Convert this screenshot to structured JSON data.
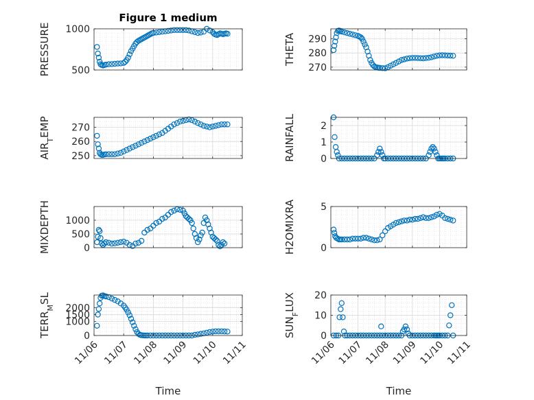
{
  "figure": {
    "title": "Figure 1 medium"
  },
  "style": {
    "marker_color": "#0072bd",
    "grid_color": "#d9d9d9",
    "axis_color": "#262626"
  },
  "chart_data": [
    {
      "type": "scatter",
      "ylabel": "PRESSURE",
      "xlim": [
        0,
        5
      ],
      "ylim": [
        500,
        1000
      ],
      "yticks": [
        500,
        1000
      ],
      "xtick_labels": [],
      "x": [
        0.1,
        0.13,
        0.16,
        0.19,
        0.22,
        0.26,
        0.3,
        0.35,
        0.4,
        0.5,
        0.6,
        0.7,
        0.8,
        0.9,
        1.0,
        1.05,
        1.1,
        1.15,
        1.2,
        1.25,
        1.3,
        1.35,
        1.4,
        1.45,
        1.5,
        1.55,
        1.6,
        1.65,
        1.7,
        1.75,
        1.8,
        1.85,
        1.9,
        1.95,
        2.0,
        2.1,
        2.2,
        2.3,
        2.4,
        2.5,
        2.6,
        2.7,
        2.8,
        2.9,
        3.0,
        3.1,
        3.2,
        3.3,
        3.4,
        3.5,
        3.6,
        3.7,
        3.8,
        3.9,
        4.0,
        4.05,
        4.1,
        4.15,
        4.2,
        4.25,
        4.3,
        4.35,
        4.4,
        4.45,
        4.5
      ],
      "y": [
        780,
        700,
        650,
        600,
        570,
        560,
        555,
        560,
        565,
        570,
        572,
        575,
        578,
        580,
        585,
        600,
        620,
        650,
        690,
        730,
        760,
        790,
        820,
        840,
        855,
        865,
        875,
        885,
        895,
        905,
        915,
        925,
        935,
        945,
        950,
        955,
        960,
        965,
        970,
        975,
        980,
        985,
        985,
        985,
        985,
        985,
        980,
        970,
        960,
        950,
        955,
        965,
        1000,
        980,
        960,
        940,
        930,
        925,
        935,
        945,
        940,
        935,
        940,
        945,
        940
      ]
    },
    {
      "type": "scatter",
      "ylabel": "THETA",
      "xlim": [
        0,
        5
      ],
      "ylim": [
        268,
        297
      ],
      "yticks": [
        270,
        280,
        290
      ],
      "xtick_labels": [],
      "x": [
        0.1,
        0.13,
        0.16,
        0.19,
        0.22,
        0.26,
        0.3,
        0.35,
        0.4,
        0.5,
        0.6,
        0.7,
        0.8,
        0.9,
        1.0,
        1.05,
        1.1,
        1.15,
        1.2,
        1.25,
        1.3,
        1.35,
        1.4,
        1.45,
        1.5,
        1.55,
        1.6,
        1.65,
        1.7,
        1.75,
        1.8,
        1.9,
        2.0,
        2.1,
        2.2,
        2.3,
        2.4,
        2.5,
        2.6,
        2.7,
        2.8,
        2.9,
        3.0,
        3.1,
        3.2,
        3.3,
        3.4,
        3.5,
        3.6,
        3.7,
        3.8,
        3.9,
        4.0,
        4.1,
        4.2,
        4.3,
        4.4,
        4.5
      ],
      "y": [
        282,
        285,
        288,
        291,
        294,
        295.5,
        295.8,
        295.5,
        295,
        294.5,
        294,
        293.5,
        293,
        292.5,
        292,
        291.5,
        291,
        290,
        288,
        286,
        284,
        281,
        278,
        275,
        273,
        271.5,
        270.5,
        270,
        269.8,
        269.6,
        269.5,
        269.3,
        269.2,
        270,
        271,
        272,
        273,
        274,
        275,
        275.5,
        276,
        276.3,
        276.5,
        276.5,
        276.4,
        276.3,
        276.2,
        276.4,
        276.6,
        277,
        277.5,
        278,
        278.3,
        278.4,
        278.3,
        278.2,
        278.1,
        278
      ]
    },
    {
      "type": "scatter",
      "ylabel": "AIR_TEMP",
      "xlim": [
        0,
        5
      ],
      "ylim": [
        248,
        277
      ],
      "yticks": [
        250,
        260,
        270
      ],
      "xtick_labels": [],
      "x": [
        0.1,
        0.13,
        0.16,
        0.19,
        0.22,
        0.26,
        0.3,
        0.35,
        0.4,
        0.5,
        0.6,
        0.7,
        0.8,
        0.9,
        1.0,
        1.1,
        1.2,
        1.3,
        1.4,
        1.5,
        1.6,
        1.7,
        1.8,
        1.9,
        2.0,
        2.1,
        2.2,
        2.3,
        2.4,
        2.5,
        2.6,
        2.7,
        2.8,
        2.9,
        3.0,
        3.1,
        3.2,
        3.3,
        3.4,
        3.5,
        3.6,
        3.7,
        3.8,
        3.9,
        4.0,
        4.1,
        4.2,
        4.3,
        4.4,
        4.5
      ],
      "y": [
        264,
        258,
        255,
        252,
        251,
        250.5,
        250.5,
        250.8,
        251,
        251,
        251,
        251,
        251.5,
        252,
        253,
        254,
        255,
        256,
        257,
        258,
        259,
        260,
        261,
        262,
        263,
        264,
        265,
        266,
        267.5,
        269,
        270.5,
        272,
        273,
        274,
        274.5,
        275,
        275.5,
        275,
        274,
        273,
        272,
        271,
        270.5,
        270,
        270.5,
        271,
        271.5,
        272,
        272,
        272
      ]
    },
    {
      "type": "scatter",
      "ylabel": "RAINFALL",
      "xlim": [
        0,
        5
      ],
      "ylim": [
        0,
        2.5
      ],
      "yticks": [
        0,
        1,
        2
      ],
      "xtick_labels": [],
      "x": [
        0.1,
        0.14,
        0.18,
        0.22,
        0.26,
        0.3,
        0.4,
        0.5,
        0.6,
        0.7,
        0.8,
        0.9,
        1.0,
        1.1,
        1.2,
        1.3,
        1.4,
        1.5,
        1.6,
        1.7,
        1.75,
        1.8,
        1.85,
        1.9,
        1.95,
        2.0,
        2.1,
        2.2,
        2.3,
        2.4,
        2.5,
        2.6,
        2.7,
        2.8,
        2.9,
        3.0,
        3.1,
        3.2,
        3.3,
        3.4,
        3.5,
        3.6,
        3.65,
        3.7,
        3.75,
        3.8,
        3.85,
        3.9,
        3.95,
        4.0,
        4.05,
        4.1,
        4.15,
        4.2,
        4.3,
        4.4,
        4.5
      ],
      "y": [
        2.5,
        1.3,
        0.7,
        0.4,
        0.2,
        0,
        0,
        0,
        0,
        0,
        0,
        0,
        0,
        0,
        0,
        0,
        0,
        0,
        0,
        0.2,
        0.4,
        0.6,
        0.4,
        0.2,
        0,
        0,
        0,
        0,
        0,
        0,
        0,
        0,
        0,
        0,
        0,
        0,
        0,
        0,
        0,
        0,
        0,
        0.2,
        0.4,
        0.6,
        0.7,
        0.6,
        0.4,
        0.2,
        0,
        0,
        0,
        0,
        0,
        0,
        0,
        0,
        0
      ]
    },
    {
      "type": "scatter",
      "ylabel": "MIXDEPTH",
      "xlim": [
        0,
        5
      ],
      "ylim": [
        0,
        1500
      ],
      "yticks": [
        0,
        500,
        1000
      ],
      "xtick_labels": [],
      "x": [
        0.1,
        0.13,
        0.16,
        0.19,
        0.22,
        0.26,
        0.3,
        0.35,
        0.4,
        0.5,
        0.6,
        0.7,
        0.8,
        0.9,
        1.0,
        1.1,
        1.2,
        1.3,
        1.4,
        1.5,
        1.6,
        1.7,
        1.8,
        1.9,
        2.0,
        2.1,
        2.2,
        2.3,
        2.4,
        2.5,
        2.6,
        2.7,
        2.8,
        2.9,
        3.0,
        3.05,
        3.1,
        3.15,
        3.2,
        3.25,
        3.3,
        3.35,
        3.4,
        3.45,
        3.5,
        3.55,
        3.6,
        3.65,
        3.7,
        3.75,
        3.8,
        3.85,
        3.9,
        3.95,
        4.0,
        4.05,
        4.1,
        4.15,
        4.2,
        4.25,
        4.3,
        4.35,
        4.4
      ],
      "y": [
        200,
        400,
        650,
        600,
        350,
        150,
        100,
        150,
        200,
        180,
        150,
        160,
        180,
        200,
        220,
        180,
        100,
        60,
        150,
        180,
        250,
        550,
        650,
        700,
        800,
        900,
        950,
        1050,
        1100,
        1200,
        1300,
        1350,
        1400,
        1380,
        1350,
        1250,
        1150,
        1100,
        1050,
        1000,
        900,
        700,
        500,
        350,
        200,
        300,
        450,
        550,
        900,
        1100,
        1000,
        850,
        700,
        550,
        400,
        350,
        300,
        250,
        100,
        50,
        100,
        200,
        150
      ]
    },
    {
      "type": "scatter",
      "ylabel": "H2OMIXRA",
      "xlim": [
        0,
        5
      ],
      "ylim": [
        0,
        5
      ],
      "yticks": [
        0,
        5
      ],
      "xtick_labels": [],
      "x": [
        0.1,
        0.13,
        0.16,
        0.2,
        0.25,
        0.3,
        0.35,
        0.4,
        0.5,
        0.6,
        0.7,
        0.8,
        0.9,
        1.0,
        1.1,
        1.2,
        1.3,
        1.4,
        1.5,
        1.6,
        1.7,
        1.8,
        1.9,
        2.0,
        2.1,
        2.2,
        2.3,
        2.4,
        2.5,
        2.6,
        2.7,
        2.8,
        2.9,
        3.0,
        3.1,
        3.2,
        3.3,
        3.4,
        3.5,
        3.6,
        3.7,
        3.8,
        3.9,
        4.0,
        4.1,
        4.2,
        4.3,
        4.4,
        4.5
      ],
      "y": [
        2.2,
        1.8,
        1.4,
        1.2,
        1.1,
        1.0,
        1.0,
        1.0,
        1.0,
        1.0,
        1.0,
        1.1,
        1.1,
        1.1,
        1.1,
        1.2,
        1.2,
        1.1,
        1.0,
        0.9,
        0.9,
        1.0,
        1.5,
        2.0,
        2.4,
        2.6,
        2.8,
        3.0,
        3.1,
        3.2,
        3.3,
        3.3,
        3.4,
        3.4,
        3.5,
        3.5,
        3.6,
        3.7,
        3.6,
        3.6,
        3.7,
        3.8,
        4.0,
        4.1,
        3.9,
        3.6,
        3.5,
        3.4,
        3.3
      ]
    },
    {
      "type": "scatter",
      "ylabel": "TERR_MSL",
      "xlabel": "Time",
      "xlim": [
        0,
        5
      ],
      "ylim": [
        0,
        2900
      ],
      "yticks": [
        0,
        1000,
        1500,
        2000
      ],
      "xtick_labels": [
        "11/06",
        "11/07",
        "11/08",
        "11/09",
        "11/10",
        "11/11"
      ],
      "x": [
        0.1,
        0.13,
        0.16,
        0.19,
        0.22,
        0.26,
        0.3,
        0.35,
        0.4,
        0.5,
        0.6,
        0.7,
        0.8,
        0.9,
        1.0,
        1.05,
        1.1,
        1.15,
        1.2,
        1.25,
        1.3,
        1.35,
        1.4,
        1.45,
        1.5,
        1.55,
        1.6,
        1.65,
        1.7,
        1.75,
        1.8,
        1.9,
        2.0,
        2.1,
        2.2,
        2.3,
        2.4,
        2.5,
        2.6,
        2.7,
        2.8,
        2.9,
        3.0,
        3.1,
        3.2,
        3.3,
        3.4,
        3.5,
        3.6,
        3.7,
        3.8,
        3.9,
        4.0,
        4.1,
        4.2,
        4.3,
        4.4,
        4.5
      ],
      "y": [
        700,
        1500,
        1900,
        2300,
        2700,
        2850,
        2870,
        2830,
        2800,
        2750,
        2650,
        2550,
        2450,
        2300,
        2150,
        2000,
        1850,
        1650,
        1450,
        1200,
        950,
        700,
        450,
        250,
        120,
        50,
        20,
        10,
        5,
        0,
        0,
        0,
        0,
        0,
        0,
        0,
        0,
        0,
        0,
        0,
        0,
        0,
        0,
        0,
        0,
        0,
        50,
        80,
        120,
        150,
        200,
        250,
        280,
        300,
        300,
        300,
        290,
        280
      ]
    },
    {
      "type": "scatter",
      "ylabel": "SUN_FLUX",
      "xlabel": "Time",
      "xlim": [
        0,
        5
      ],
      "ylim": [
        0,
        20
      ],
      "yticks": [
        0,
        10,
        20
      ],
      "xtick_labels": [
        "11/06",
        "11/07",
        "11/08",
        "11/09",
        "11/10",
        "11/11"
      ],
      "x": [
        0.1,
        0.2,
        0.28,
        0.32,
        0.36,
        0.4,
        0.44,
        0.48,
        0.52,
        0.6,
        0.7,
        0.8,
        0.9,
        1.0,
        1.1,
        1.2,
        1.3,
        1.4,
        1.5,
        1.6,
        1.7,
        1.8,
        1.85,
        1.9,
        2.0,
        2.1,
        2.2,
        2.3,
        2.4,
        2.5,
        2.6,
        2.65,
        2.7,
        2.75,
        2.8,
        2.85,
        2.9,
        3.0,
        3.1,
        3.2,
        3.3,
        3.4,
        3.5,
        3.6,
        3.7,
        3.8,
        3.85,
        3.9,
        3.95,
        4.0,
        4.1,
        4.2,
        4.3,
        4.35,
        4.4,
        4.45,
        4.5
      ],
      "y": [
        0,
        0,
        0,
        9,
        13,
        16,
        9,
        2,
        0,
        0,
        0,
        0,
        0,
        0,
        0,
        0,
        0,
        0,
        0,
        0,
        0,
        0,
        4.5,
        0,
        0,
        0,
        0,
        0,
        0,
        0,
        0,
        2,
        3,
        4.5,
        3,
        1,
        0,
        0,
        0,
        0,
        0,
        0,
        0,
        0,
        0,
        0,
        0,
        0,
        0,
        0,
        0,
        0,
        0,
        5,
        10,
        15,
        0
      ]
    }
  ]
}
